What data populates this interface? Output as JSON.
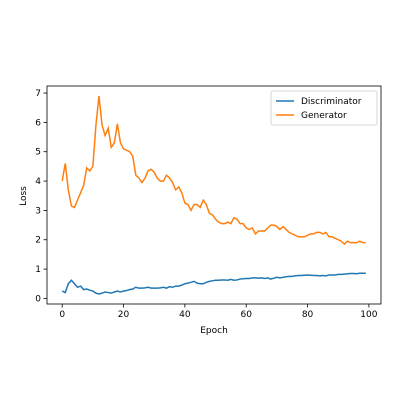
{
  "chart_data": {
    "type": "line",
    "xlabel": "Epoch",
    "ylabel": "Loss",
    "x": [
      0,
      1,
      2,
      3,
      4,
      5,
      6,
      7,
      8,
      9,
      10,
      11,
      12,
      13,
      14,
      15,
      16,
      17,
      18,
      19,
      20,
      21,
      22,
      23,
      24,
      25,
      26,
      27,
      28,
      29,
      30,
      31,
      32,
      33,
      34,
      35,
      36,
      37,
      38,
      39,
      40,
      41,
      42,
      43,
      44,
      45,
      46,
      47,
      48,
      49,
      50,
      51,
      52,
      53,
      54,
      55,
      56,
      57,
      58,
      59,
      60,
      61,
      62,
      63,
      64,
      65,
      66,
      67,
      68,
      69,
      70,
      71,
      72,
      73,
      74,
      75,
      76,
      77,
      78,
      79,
      80,
      81,
      82,
      83,
      84,
      85,
      86,
      87,
      88,
      89,
      90,
      91,
      92,
      93,
      94,
      95,
      96,
      97,
      98,
      99
    ],
    "series": [
      {
        "name": "Discriminator",
        "color": "#1f77b4",
        "values": [
          0.25,
          0.2,
          0.5,
          0.62,
          0.5,
          0.38,
          0.42,
          0.3,
          0.32,
          0.28,
          0.25,
          0.18,
          0.15,
          0.18,
          0.22,
          0.2,
          0.18,
          0.22,
          0.25,
          0.22,
          0.25,
          0.27,
          0.3,
          0.32,
          0.38,
          0.35,
          0.35,
          0.36,
          0.38,
          0.35,
          0.35,
          0.35,
          0.36,
          0.38,
          0.35,
          0.4,
          0.38,
          0.42,
          0.42,
          0.45,
          0.5,
          0.52,
          0.55,
          0.58,
          0.52,
          0.5,
          0.5,
          0.55,
          0.58,
          0.6,
          0.62,
          0.62,
          0.63,
          0.63,
          0.62,
          0.65,
          0.62,
          0.63,
          0.66,
          0.67,
          0.68,
          0.68,
          0.7,
          0.7,
          0.69,
          0.7,
          0.68,
          0.7,
          0.66,
          0.69,
          0.72,
          0.7,
          0.72,
          0.74,
          0.75,
          0.75,
          0.77,
          0.78,
          0.78,
          0.79,
          0.8,
          0.79,
          0.78,
          0.78,
          0.77,
          0.78,
          0.77,
          0.8,
          0.8,
          0.8,
          0.82,
          0.82,
          0.83,
          0.84,
          0.85,
          0.85,
          0.84,
          0.86,
          0.86,
          0.86
        ]
      },
      {
        "name": "Generator",
        "color": "#ff7f0e",
        "values": [
          4.0,
          4.6,
          3.7,
          3.15,
          3.1,
          3.35,
          3.6,
          3.85,
          4.45,
          4.35,
          4.5,
          5.9,
          6.9,
          5.9,
          5.55,
          5.8,
          5.15,
          5.3,
          5.95,
          5.3,
          5.1,
          5.05,
          5.0,
          4.85,
          4.2,
          4.1,
          3.95,
          4.1,
          4.35,
          4.4,
          4.3,
          4.1,
          4.0,
          4.0,
          4.2,
          4.1,
          3.95,
          3.7,
          3.8,
          3.6,
          3.25,
          3.2,
          3.0,
          3.2,
          3.2,
          3.1,
          3.35,
          3.2,
          2.9,
          2.85,
          2.7,
          2.6,
          2.55,
          2.55,
          2.6,
          2.55,
          2.75,
          2.7,
          2.55,
          2.55,
          2.4,
          2.35,
          2.4,
          2.2,
          2.3,
          2.3,
          2.3,
          2.4,
          2.5,
          2.5,
          2.45,
          2.35,
          2.45,
          2.35,
          2.25,
          2.2,
          2.15,
          2.1,
          2.1,
          2.1,
          2.15,
          2.2,
          2.2,
          2.25,
          2.25,
          2.2,
          2.25,
          2.1,
          2.1,
          2.05,
          2.0,
          1.95,
          1.85,
          1.95,
          1.9,
          1.9,
          1.9,
          1.95,
          1.9,
          1.9
        ]
      }
    ],
    "xlim": [
      -4.95,
      103.95
    ],
    "ylim": [
      -0.19,
      7.24
    ],
    "xticks": [
      0,
      20,
      40,
      60,
      80,
      100
    ],
    "yticks": [
      0,
      1,
      2,
      3,
      4,
      5,
      6,
      7
    ],
    "grid": false,
    "legend": "upper right"
  }
}
